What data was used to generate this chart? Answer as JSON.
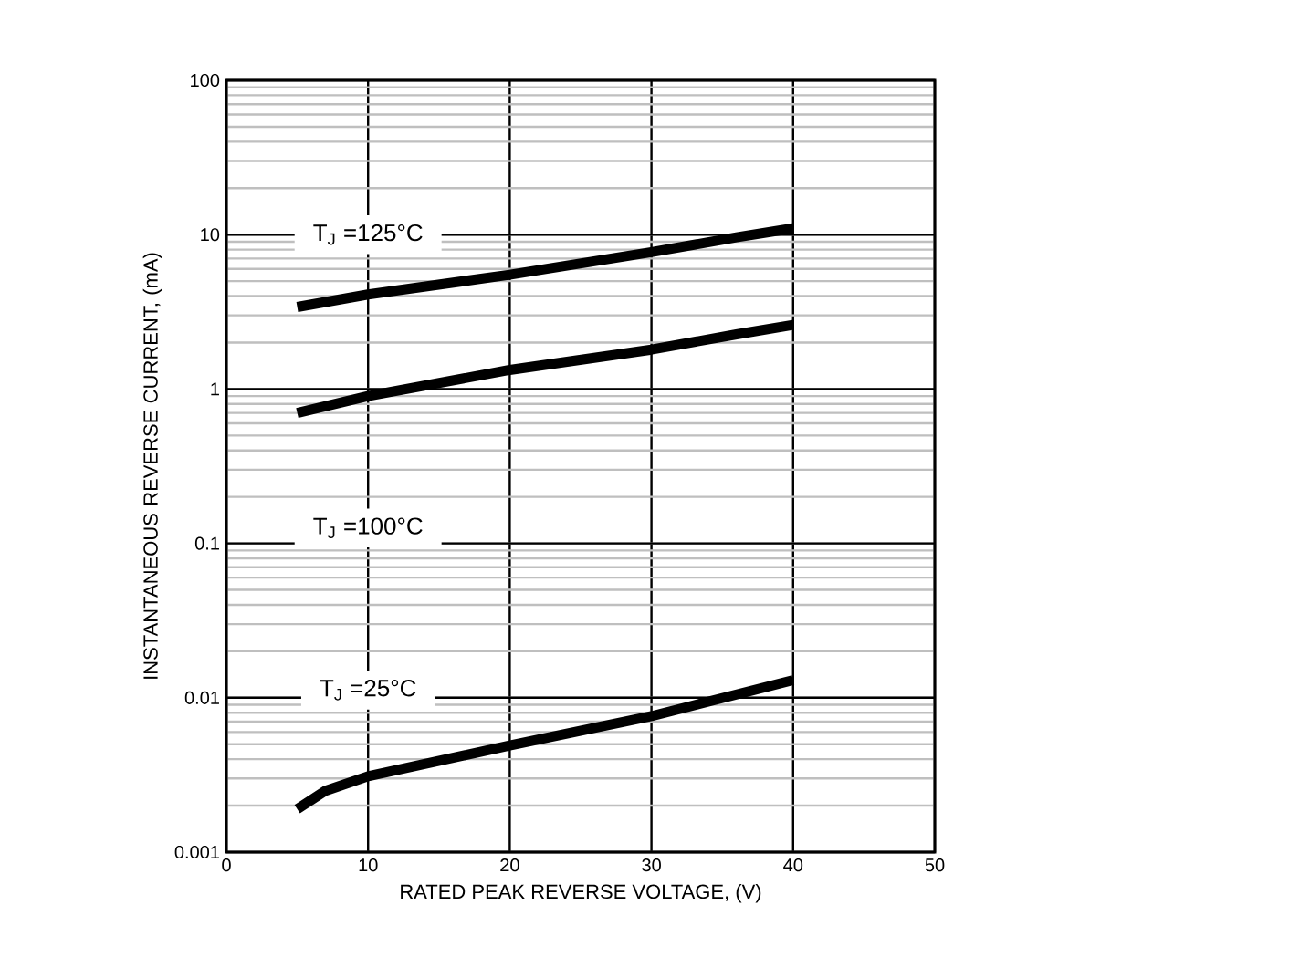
{
  "chart_data": {
    "type": "line",
    "xlabel": "RATED PEAK REVERSE VOLTAGE, (V)",
    "ylabel": "INSTANTANEOUS REVERSE CURRENT, (mA)",
    "log": "y",
    "grid": true,
    "marker": "none",
    "line_style": "solid",
    "xlim": [
      0,
      50
    ],
    "xticks": [
      0,
      10,
      20,
      30,
      40,
      50
    ],
    "ylim": [
      0.001,
      100
    ],
    "yticks": [
      0.001,
      0.01,
      0.1,
      1,
      10,
      100
    ],
    "series": [
      {
        "color": "#000000",
        "x": [
          5,
          10,
          20,
          30,
          36,
          40
        ],
        "values": [
          3.4,
          4.1,
          5.5,
          7.7,
          9.6,
          11
        ]
      },
      {
        "color": "#000000",
        "x": [
          5,
          10,
          20,
          30,
          36,
          40
        ],
        "values": [
          0.7,
          0.9,
          1.33,
          1.8,
          2.26,
          2.6
        ]
      },
      {
        "color": "#000000",
        "x": [
          5,
          7,
          10,
          20,
          30,
          36,
          40
        ],
        "values": [
          0.0019,
          0.0025,
          0.0031,
          0.0049,
          0.0076,
          0.0105,
          0.013
        ]
      }
    ],
    "annotations": [
      "T$_{J}$ =125°C",
      "T$_{J}$ =100°C",
      "T$_{J}$ =25°C"
    ]
  }
}
